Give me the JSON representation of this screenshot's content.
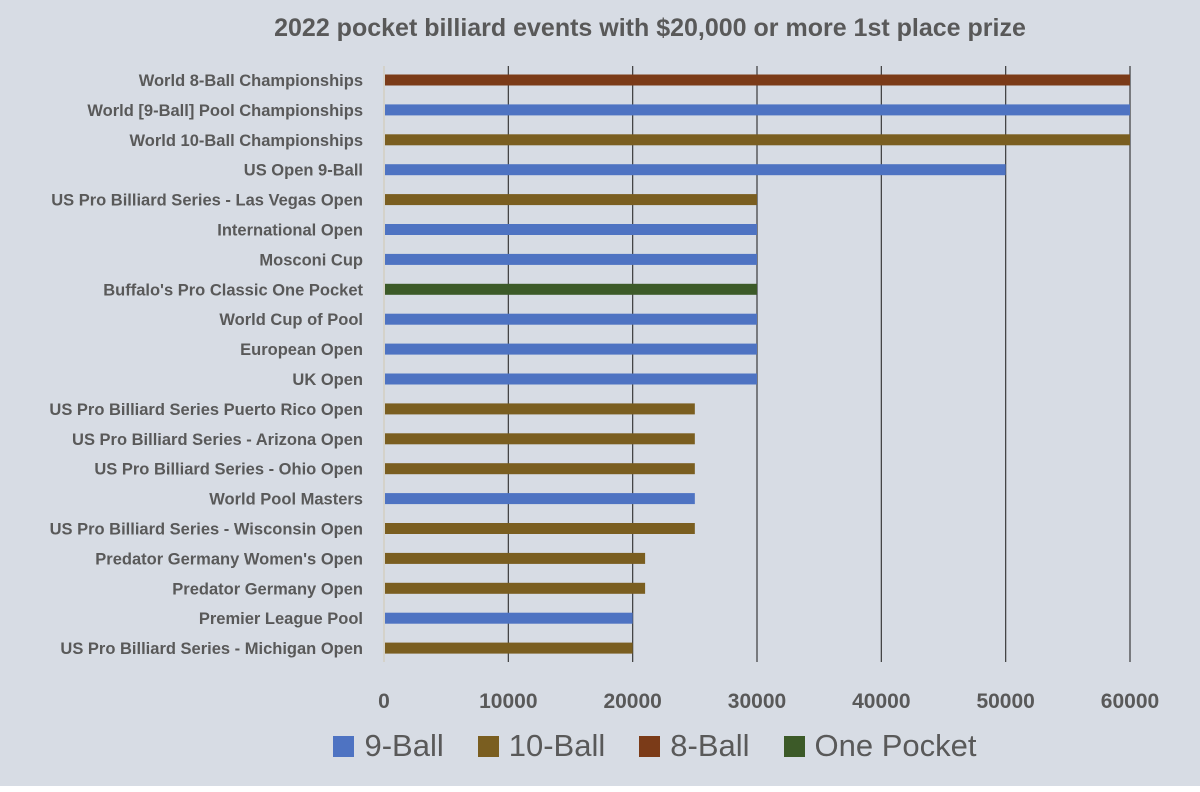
{
  "chart_data": {
    "type": "bar",
    "orientation": "horizontal",
    "title": "2022 pocket billiard events with $20,000 or more 1st place prize",
    "xlabel": "",
    "ylabel": "",
    "xlim": [
      0,
      60000
    ],
    "xticks": [
      "0",
      "10000",
      "20000",
      "30000",
      "40000",
      "50000",
      "60000"
    ],
    "grid": "vertical",
    "legend_position": "bottom",
    "categories": [
      "World 8-Ball Championships",
      "World [9-Ball] Pool Championships",
      "World 10-Ball Championships",
      "US Open 9-Ball",
      "US Pro Billiard Series - Las Vegas Open",
      "International Open",
      "Mosconi Cup",
      "Buffalo's Pro Classic One Pocket",
      "World Cup of Pool",
      "European Open",
      "UK Open",
      "US Pro Billiard Series Puerto Rico Open",
      "US Pro Billiard Series - Arizona Open",
      "US Pro Billiard Series - Ohio Open",
      "World Pool Masters",
      "US Pro Billiard Series - Wisconsin Open",
      "Predator Germany Women's Open",
      "Predator Germany Open",
      "Premier League Pool",
      "US Pro Billiard Series - Michigan Open"
    ],
    "values": [
      60000,
      60000,
      60000,
      50000,
      30000,
      30000,
      30000,
      30000,
      30000,
      30000,
      30000,
      25000,
      25000,
      25000,
      25000,
      25000,
      21000,
      21000,
      20000,
      20000
    ],
    "series_of": [
      "8-Ball",
      "9-Ball",
      "10-Ball",
      "9-Ball",
      "10-Ball",
      "9-Ball",
      "9-Ball",
      "One Pocket",
      "9-Ball",
      "9-Ball",
      "9-Ball",
      "10-Ball",
      "10-Ball",
      "10-Ball",
      "9-Ball",
      "10-Ball",
      "10-Ball",
      "10-Ball",
      "9-Ball",
      "10-Ball"
    ],
    "series": [
      {
        "name": "9-Ball",
        "color": "#4e73c2"
      },
      {
        "name": "10-Ball",
        "color": "#7a5e20"
      },
      {
        "name": "8-Ball",
        "color": "#7b3b18"
      },
      {
        "name": "One Pocket",
        "color": "#3c5a28"
      }
    ]
  }
}
